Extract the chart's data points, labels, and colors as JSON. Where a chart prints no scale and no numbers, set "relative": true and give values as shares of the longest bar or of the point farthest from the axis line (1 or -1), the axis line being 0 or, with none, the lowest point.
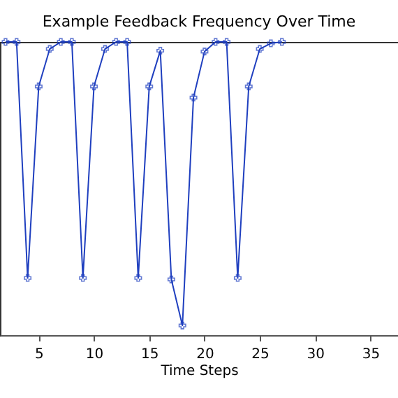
{
  "chart_data": {
    "type": "line",
    "title": "Example Feedback Frequency Over Time",
    "xlabel": "Time Steps",
    "relative": true,
    "x": [
      2,
      3,
      4,
      5,
      6,
      7,
      8,
      9,
      10,
      11,
      12,
      13,
      14,
      15,
      16,
      17,
      18,
      19,
      20,
      21,
      22,
      23,
      24,
      25,
      26,
      27
    ],
    "series": [
      {
        "color": "#1f3fbf",
        "values": [
          1,
          1,
          0.195,
          0.848,
          0.976,
          1,
          1,
          0.195,
          0.848,
          0.976,
          1,
          1,
          0.195,
          0.848,
          0.97,
          0.19,
          0.033,
          0.81,
          0.967,
          1,
          1,
          0.195,
          0.848,
          0.976,
          0.995,
          1
        ]
      }
    ],
    "xlim": [
      1.5,
      37.5
    ],
    "xticks": [
      5,
      10,
      15,
      20,
      25,
      30,
      35
    ],
    "marker": "cross",
    "grid": false,
    "legend": false
  }
}
